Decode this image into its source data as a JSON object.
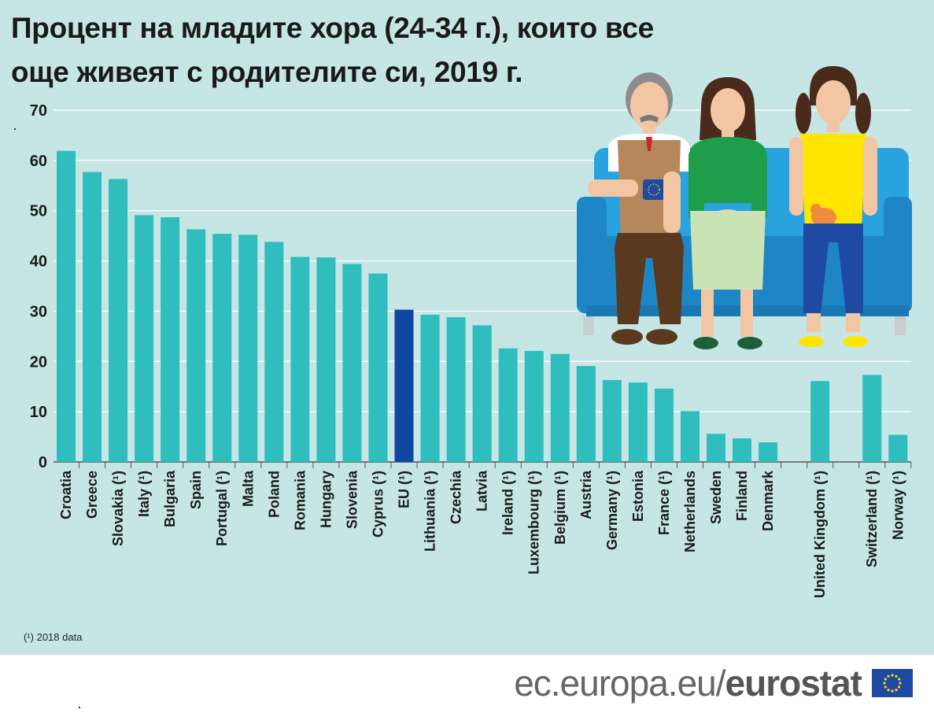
{
  "title": {
    "line1": "Процент на младите хора (24-34 г.), които все",
    "line2": "още живеят с родителите си, 2019 г."
  },
  "footnote": "(¹) 2018 data",
  "footer": {
    "url_plain": "ec.europa.eu/",
    "url_bold": "eurostat"
  },
  "colors": {
    "background": "#c6e6e6",
    "bar": "#2fbdbd",
    "highlight": "#0d47a1",
    "text": "#1a1a1a"
  },
  "icons": [
    "eu-flag-icon",
    "family-on-sofa-illustration",
    "eu-mug-icon",
    "cat-icon"
  ],
  "chart_data": {
    "type": "bar",
    "ylim": [
      0,
      70
    ],
    "yticks": [
      0,
      10,
      20,
      30,
      40,
      50,
      60,
      70
    ],
    "highlight": "EU (¹)",
    "categories": [
      "Croatia",
      "Greece",
      "Slovakia (¹)",
      "Italy (¹)",
      "Bulgaria",
      "Spain",
      "Portugal (¹)",
      "Malta",
      "Poland",
      "Romania",
      "Hungary",
      "Slovenia",
      "Cyprus (¹)",
      "EU (¹)",
      "Lithuania (¹)",
      "Czechia",
      "Latvia",
      "Ireland (¹)",
      "Luxembourg (¹)",
      "Belgium (¹)",
      "Austria",
      "Germany (¹)",
      "Estonia",
      "France (¹)",
      "Netherlands",
      "Sweden",
      "Finland",
      "Denmark",
      "",
      "United Kingdom (¹)",
      "",
      "Switzerland (¹)",
      "Norway (¹)"
    ],
    "values": [
      61.9,
      57.7,
      56.3,
      49.1,
      48.7,
      46.3,
      45.4,
      45.2,
      43.8,
      40.8,
      40.7,
      39.4,
      37.5,
      30.3,
      29.3,
      28.8,
      27.2,
      22.6,
      22.1,
      21.5,
      19.1,
      16.3,
      15.8,
      14.6,
      10.1,
      5.6,
      4.7,
      3.9,
      null,
      16.1,
      null,
      17.3,
      5.4
    ]
  }
}
